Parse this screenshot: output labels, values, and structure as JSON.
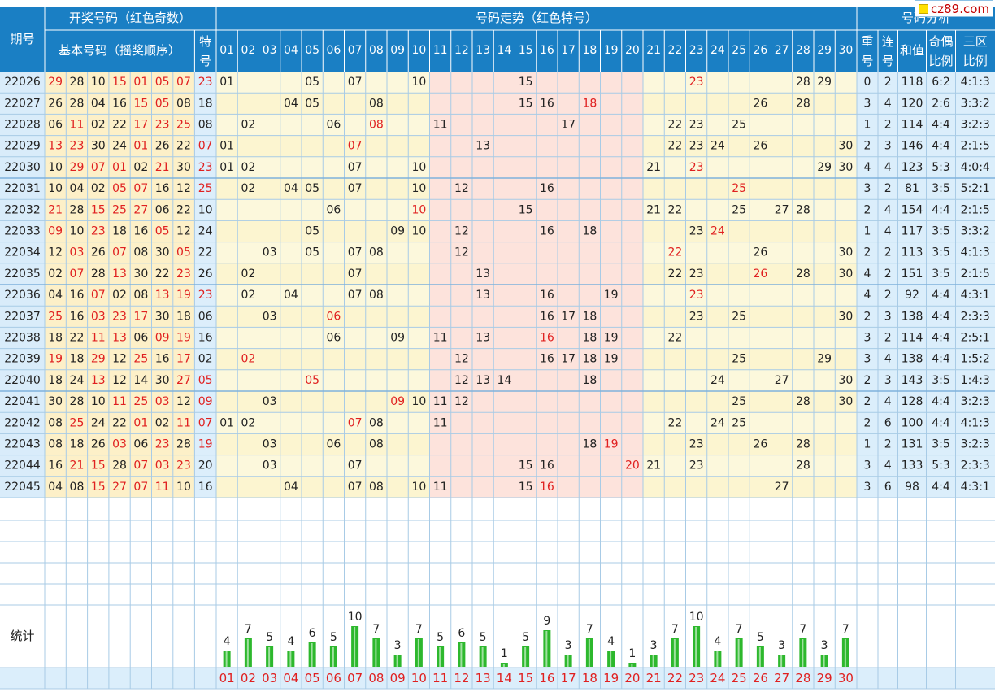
{
  "header": {
    "period_label": "期号",
    "draw_group_label": "开奖号码（红色奇数）",
    "basic_label": "基本号码（摇奖顺序）",
    "special_label": "特号",
    "trend_label": "号码走势（红色特号）",
    "analysis_label": "号码分析",
    "repeat_label": "重号",
    "consecutive_label": "连号",
    "sum_label": "和值",
    "odd_even_label": "奇偶比例",
    "zone_label": "三区比例",
    "numbers": [
      "01",
      "02",
      "03",
      "04",
      "05",
      "06",
      "07",
      "08",
      "09",
      "10",
      "11",
      "12",
      "13",
      "14",
      "15",
      "16",
      "17",
      "18",
      "19",
      "20",
      "21",
      "22",
      "23",
      "24",
      "25",
      "26",
      "27",
      "28",
      "29",
      "30"
    ]
  },
  "footer": {
    "stats_label": "统计"
  },
  "watermark": "cz89.com",
  "colors": {
    "header_bg": "#1a7fc4",
    "header_text": "#ffffff",
    "row_bg": "#fcf8dc",
    "row_alt_bg": "#fcf5d0",
    "basic_bg": "#fdf0c8",
    "period_bg": "#d9ecfa",
    "special_bg": "#dceefb",
    "middle_zone_bg": "#fde3dc",
    "analysis_bg": "#dbeefb",
    "red": "#e02020",
    "bar_green": "#2db82d",
    "grid": "#a8cbe6"
  },
  "chart_data": {
    "type": "table",
    "draws": [
      {
        "period": "22026",
        "basic": [
          "29",
          "28",
          "10",
          "15",
          "01",
          "05",
          "07"
        ],
        "special": "23",
        "trend": [
          "01",
          "05",
          "07",
          "10",
          "15",
          "23",
          "28",
          "29"
        ],
        "repeat": 0,
        "consecutive": 2,
        "sum": 118,
        "odd_even": "6:2",
        "zones": "4:1:3"
      },
      {
        "period": "22027",
        "basic": [
          "26",
          "28",
          "04",
          "16",
          "15",
          "05",
          "08"
        ],
        "special": "18",
        "trend": [
          "04",
          "05",
          "08",
          "15",
          "16",
          "18",
          "26",
          "28"
        ],
        "repeat": 3,
        "consecutive": 4,
        "sum": 120,
        "odd_even": "2:6",
        "zones": "3:3:2"
      },
      {
        "period": "22028",
        "basic": [
          "06",
          "11",
          "02",
          "22",
          "17",
          "23",
          "25"
        ],
        "special": "08",
        "trend": [
          "02",
          "06",
          "08",
          "11",
          "17",
          "22",
          "23",
          "25"
        ],
        "repeat": 1,
        "consecutive": 2,
        "sum": 114,
        "odd_even": "4:4",
        "zones": "3:2:3"
      },
      {
        "period": "22029",
        "basic": [
          "13",
          "23",
          "30",
          "24",
          "01",
          "26",
          "22"
        ],
        "special": "07",
        "trend": [
          "01",
          "07",
          "13",
          "22",
          "23",
          "24",
          "26",
          "30"
        ],
        "repeat": 2,
        "consecutive": 3,
        "sum": 146,
        "odd_even": "4:4",
        "zones": "2:1:5"
      },
      {
        "period": "22030",
        "basic": [
          "10",
          "29",
          "07",
          "01",
          "02",
          "21",
          "30"
        ],
        "special": "23",
        "trend": [
          "01",
          "02",
          "07",
          "10",
          "21",
          "23",
          "29",
          "30"
        ],
        "repeat": 4,
        "consecutive": 4,
        "sum": 123,
        "odd_even": "5:3",
        "zones": "4:0:4"
      },
      {
        "period": "22031",
        "basic": [
          "10",
          "04",
          "02",
          "05",
          "07",
          "16",
          "12"
        ],
        "special": "25",
        "trend": [
          "02",
          "04",
          "05",
          "07",
          "10",
          "12",
          "16",
          "25"
        ],
        "repeat": 3,
        "consecutive": 2,
        "sum": 81,
        "odd_even": "3:5",
        "zones": "5:2:1"
      },
      {
        "period": "22032",
        "basic": [
          "21",
          "28",
          "15",
          "25",
          "27",
          "06",
          "22"
        ],
        "special": "10",
        "trend": [
          "06",
          "10",
          "15",
          "21",
          "22",
          "25",
          "27",
          "28"
        ],
        "repeat": 2,
        "consecutive": 4,
        "sum": 154,
        "odd_even": "4:4",
        "zones": "2:1:5"
      },
      {
        "period": "22033",
        "basic": [
          "09",
          "10",
          "23",
          "18",
          "16",
          "05",
          "12"
        ],
        "special": "24",
        "trend": [
          "05",
          "09",
          "10",
          "12",
          "16",
          "18",
          "23",
          "24"
        ],
        "repeat": 1,
        "consecutive": 4,
        "sum": 117,
        "odd_even": "3:5",
        "zones": "3:3:2"
      },
      {
        "period": "22034",
        "basic": [
          "12",
          "03",
          "26",
          "07",
          "08",
          "30",
          "05"
        ],
        "special": "22",
        "trend": [
          "03",
          "05",
          "07",
          "08",
          "12",
          "22",
          "26",
          "30"
        ],
        "repeat": 2,
        "consecutive": 2,
        "sum": 113,
        "odd_even": "3:5",
        "zones": "4:1:3"
      },
      {
        "period": "22035",
        "basic": [
          "02",
          "07",
          "28",
          "13",
          "30",
          "22",
          "23"
        ],
        "special": "26",
        "trend": [
          "02",
          "07",
          "13",
          "22",
          "23",
          "26",
          "28",
          "30"
        ],
        "repeat": 4,
        "consecutive": 2,
        "sum": 151,
        "odd_even": "3:5",
        "zones": "2:1:5"
      },
      {
        "period": "22036",
        "basic": [
          "04",
          "16",
          "07",
          "02",
          "08",
          "13",
          "19"
        ],
        "special": "23",
        "trend": [
          "02",
          "04",
          "07",
          "08",
          "13",
          "16",
          "19",
          "23"
        ],
        "repeat": 4,
        "consecutive": 2,
        "sum": 92,
        "odd_even": "4:4",
        "zones": "4:3:1"
      },
      {
        "period": "22037",
        "basic": [
          "25",
          "16",
          "03",
          "23",
          "17",
          "30",
          "18"
        ],
        "special": "06",
        "trend": [
          "03",
          "06",
          "16",
          "17",
          "18",
          "23",
          "25",
          "30"
        ],
        "repeat": 2,
        "consecutive": 3,
        "sum": 138,
        "odd_even": "4:4",
        "zones": "2:3:3"
      },
      {
        "period": "22038",
        "basic": [
          "18",
          "22",
          "11",
          "13",
          "06",
          "09",
          "19"
        ],
        "special": "16",
        "trend": [
          "06",
          "09",
          "11",
          "13",
          "16",
          "18",
          "19",
          "22"
        ],
        "repeat": 3,
        "consecutive": 2,
        "sum": 114,
        "odd_even": "4:4",
        "zones": "2:5:1"
      },
      {
        "period": "22039",
        "basic": [
          "19",
          "18",
          "29",
          "12",
          "25",
          "16",
          "17"
        ],
        "special": "02",
        "trend": [
          "02",
          "12",
          "16",
          "17",
          "18",
          "19",
          "25",
          "29"
        ],
        "repeat": 3,
        "consecutive": 4,
        "sum": 138,
        "odd_even": "4:4",
        "zones": "1:5:2"
      },
      {
        "period": "22040",
        "basic": [
          "18",
          "24",
          "13",
          "12",
          "14",
          "30",
          "27"
        ],
        "special": "05",
        "trend": [
          "05",
          "12",
          "13",
          "14",
          "18",
          "24",
          "27",
          "30"
        ],
        "repeat": 2,
        "consecutive": 3,
        "sum": 143,
        "odd_even": "3:5",
        "zones": "1:4:3"
      },
      {
        "period": "22041",
        "basic": [
          "30",
          "28",
          "10",
          "11",
          "25",
          "03",
          "12"
        ],
        "special": "09",
        "trend": [
          "03",
          "09",
          "10",
          "11",
          "12",
          "25",
          "28",
          "30"
        ],
        "repeat": 2,
        "consecutive": 4,
        "sum": 128,
        "odd_even": "4:4",
        "zones": "3:2:3"
      },
      {
        "period": "22042",
        "basic": [
          "08",
          "25",
          "24",
          "22",
          "01",
          "02",
          "11"
        ],
        "special": "07",
        "trend": [
          "01",
          "02",
          "07",
          "08",
          "11",
          "22",
          "24",
          "25"
        ],
        "repeat": 2,
        "consecutive": 6,
        "sum": 100,
        "odd_even": "4:4",
        "zones": "4:1:3"
      },
      {
        "period": "22043",
        "basic": [
          "08",
          "18",
          "26",
          "03",
          "06",
          "23",
          "28"
        ],
        "special": "19",
        "trend": [
          "03",
          "06",
          "08",
          "18",
          "19",
          "23",
          "26",
          "28"
        ],
        "repeat": 1,
        "consecutive": 2,
        "sum": 131,
        "odd_even": "3:5",
        "zones": "3:2:3"
      },
      {
        "period": "22044",
        "basic": [
          "16",
          "21",
          "15",
          "28",
          "07",
          "03",
          "23"
        ],
        "special": "20",
        "trend": [
          "03",
          "07",
          "15",
          "16",
          "20",
          "21",
          "23",
          "28"
        ],
        "repeat": 3,
        "consecutive": 4,
        "sum": 133,
        "odd_even": "5:3",
        "zones": "2:3:3"
      },
      {
        "period": "22045",
        "basic": [
          "04",
          "08",
          "15",
          "27",
          "07",
          "11",
          "10"
        ],
        "special": "16",
        "trend": [
          "04",
          "07",
          "08",
          "10",
          "11",
          "15",
          "16",
          "27"
        ],
        "repeat": 3,
        "consecutive": 6,
        "sum": 98,
        "odd_even": "4:4",
        "zones": "4:3:1"
      }
    ],
    "stats": {
      "numbers": [
        "01",
        "02",
        "03",
        "04",
        "05",
        "06",
        "07",
        "08",
        "09",
        "10",
        "11",
        "12",
        "13",
        "14",
        "15",
        "16",
        "17",
        "18",
        "19",
        "20",
        "21",
        "22",
        "23",
        "24",
        "25",
        "26",
        "27",
        "28",
        "29",
        "30"
      ],
      "counts": [
        4,
        7,
        5,
        4,
        6,
        5,
        10,
        7,
        3,
        7,
        5,
        6,
        5,
        1,
        5,
        9,
        3,
        7,
        4,
        1,
        3,
        7,
        10,
        4,
        7,
        5,
        3,
        7,
        3,
        7
      ]
    }
  }
}
